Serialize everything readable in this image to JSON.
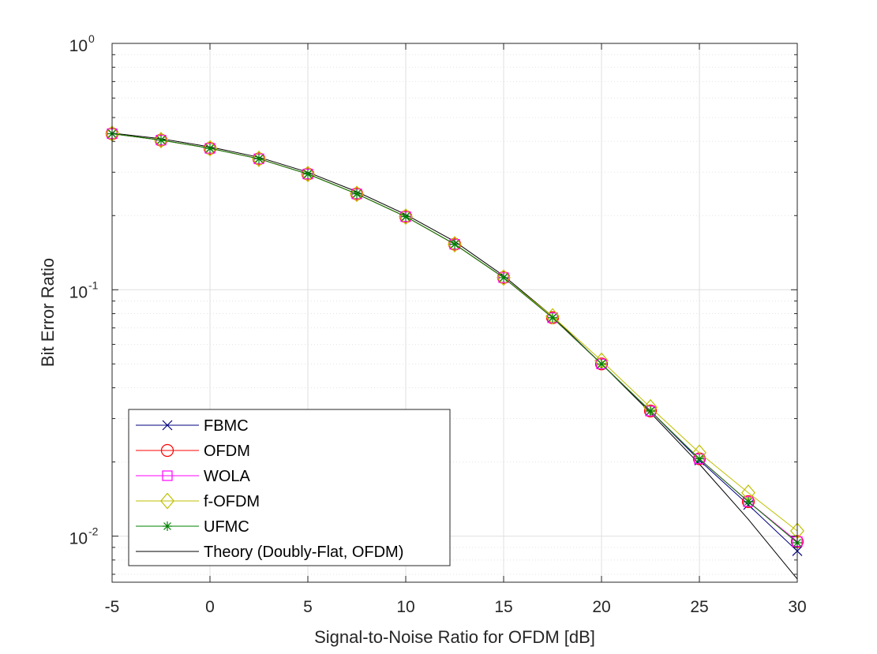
{
  "chart_data": {
    "type": "line",
    "title": "",
    "xlabel": "Signal-to-Noise Ratio for OFDM [dB]",
    "ylabel": "Bit Error Ratio",
    "xlim": [
      -5,
      30
    ],
    "ylim": [
      0.0065,
      1
    ],
    "y_scale": "log",
    "grid": true,
    "minor_grid": true,
    "legend_position": "bottom-left",
    "x_ticks": [
      "-5",
      "0",
      "5",
      "10",
      "15",
      "20",
      "25",
      "30"
    ],
    "y_ticks": [
      {
        "base": "10",
        "exp": "0"
      },
      {
        "base": "10",
        "exp": "-1"
      },
      {
        "base": "10",
        "exp": "-2"
      }
    ],
    "x": [
      -5,
      -2.5,
      0,
      2.5,
      5,
      7.5,
      10,
      12.5,
      15,
      17.5,
      20,
      22.5,
      25,
      27.5,
      30
    ],
    "series": [
      {
        "name": "FBMC",
        "color": "#00007f",
        "marker": "x",
        "values": [
          0.43,
          0.405,
          0.375,
          0.34,
          0.295,
          0.245,
          0.198,
          0.153,
          0.112,
          0.077,
          0.05,
          0.0322,
          0.0203,
          0.0134,
          0.0087
        ]
      },
      {
        "name": "OFDM",
        "color": "#ff0000",
        "marker": "circle",
        "values": [
          0.43,
          0.405,
          0.375,
          0.34,
          0.295,
          0.245,
          0.198,
          0.153,
          0.112,
          0.077,
          0.05,
          0.0322,
          0.0206,
          0.0138,
          0.0095
        ]
      },
      {
        "name": "WOLA",
        "color": "#ff00ff",
        "marker": "square",
        "values": [
          0.43,
          0.405,
          0.375,
          0.34,
          0.295,
          0.245,
          0.198,
          0.153,
          0.112,
          0.077,
          0.05,
          0.0322,
          0.0206,
          0.0138,
          0.0095
        ]
      },
      {
        "name": "f-OFDM",
        "color": "#bfbf00",
        "marker": "diamond",
        "values": [
          0.43,
          0.405,
          0.375,
          0.34,
          0.295,
          0.245,
          0.198,
          0.153,
          0.112,
          0.078,
          0.0515,
          0.0333,
          0.0218,
          0.015,
          0.0105
        ]
      },
      {
        "name": "UFMC",
        "color": "#008000",
        "marker": "asterisk",
        "values": [
          0.43,
          0.405,
          0.375,
          0.34,
          0.295,
          0.245,
          0.198,
          0.153,
          0.112,
          0.077,
          0.05,
          0.0322,
          0.0206,
          0.0138,
          0.0094
        ]
      },
      {
        "name": "Theory (Doubly-Flat, OFDM)",
        "color": "#000000",
        "marker": "none",
        "values": [
          0.432,
          0.41,
          0.38,
          0.345,
          0.3,
          0.25,
          0.202,
          0.157,
          0.114,
          0.078,
          0.05,
          0.0317,
          0.0196,
          0.0117,
          0.0067
        ]
      }
    ]
  }
}
